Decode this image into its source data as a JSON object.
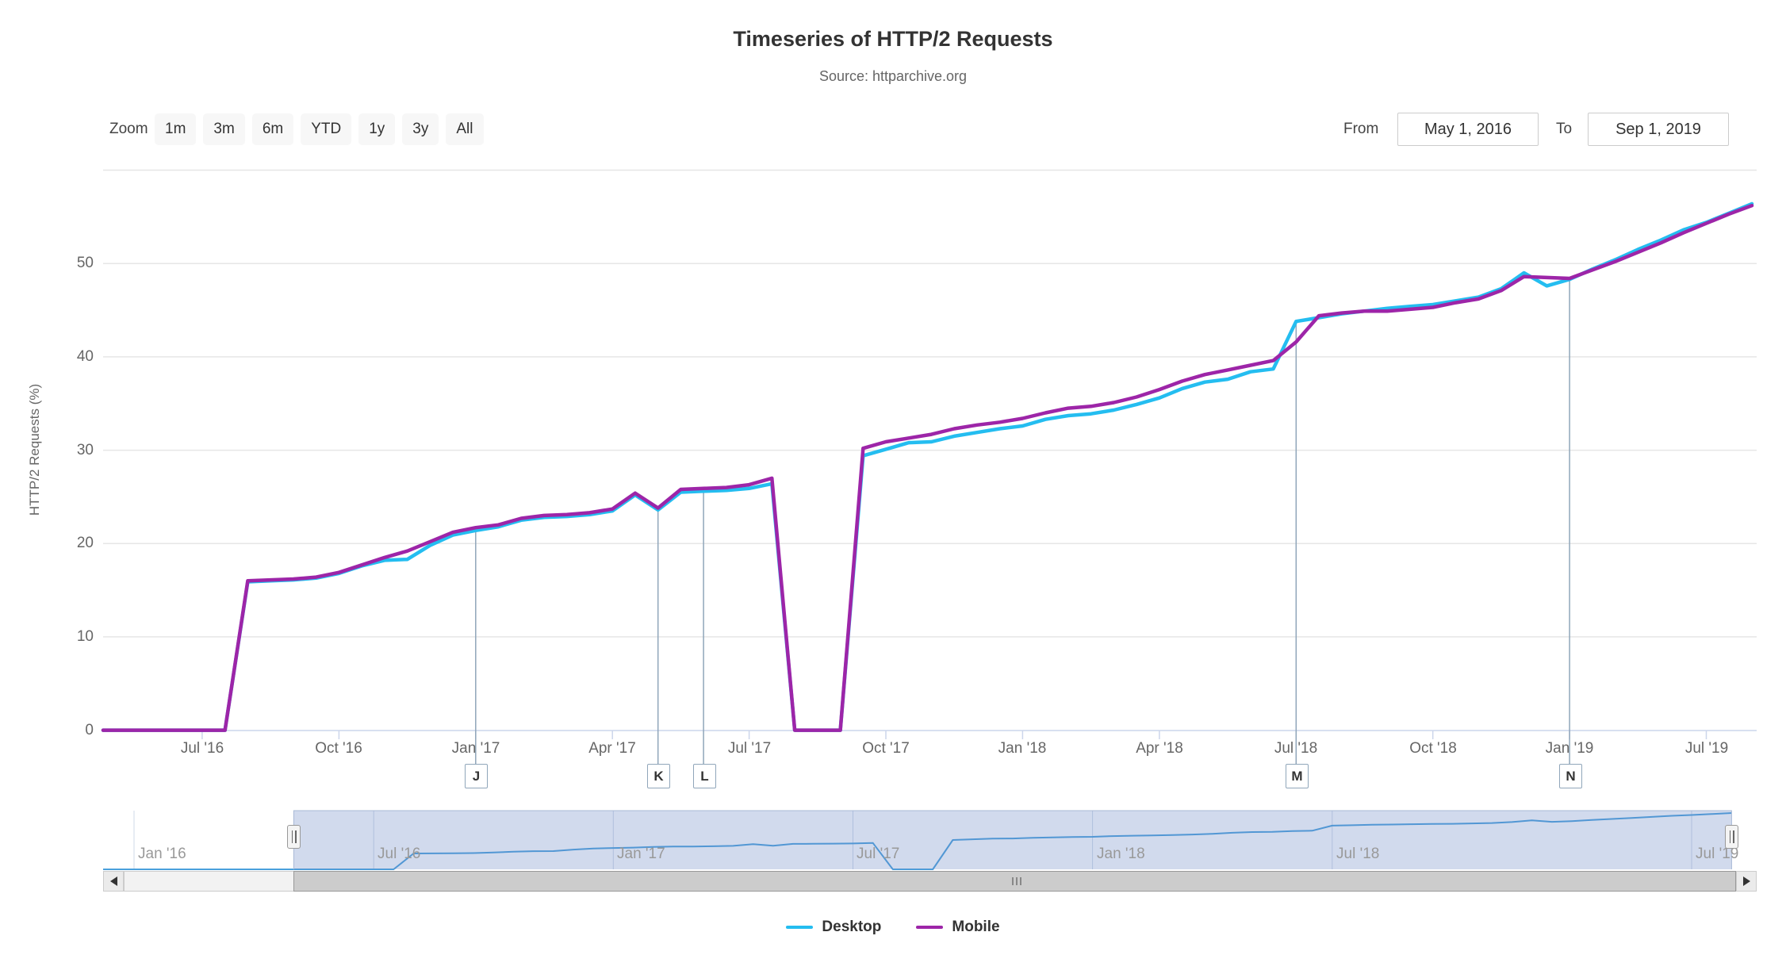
{
  "header": {
    "title": "Timeseries of HTTP/2 Requests",
    "subtitle": "Source: httparchive.org"
  },
  "menu": {
    "icon": "hamburger-icon"
  },
  "range_selector": {
    "zoom_label": "Zoom",
    "buttons": [
      "1m",
      "3m",
      "6m",
      "YTD",
      "1y",
      "3y",
      "All"
    ],
    "from_label": "From",
    "from_value": "May 1, 2016",
    "to_label": "To",
    "to_value": "Sep 1, 2019"
  },
  "y_axis": {
    "title": "HTTP/2 Requests (%)",
    "ticks": [
      0,
      10,
      20,
      30,
      40,
      50
    ]
  },
  "x_axis": {
    "ticks": [
      {
        "label": "Jul '16",
        "i": 4
      },
      {
        "label": "Oct '16",
        "i": 10
      },
      {
        "label": "Jan '17",
        "i": 16
      },
      {
        "label": "Apr '17",
        "i": 22
      },
      {
        "label": "Jul '17",
        "i": 28
      },
      {
        "label": "Oct '17",
        "i": 34
      },
      {
        "label": "Jan '18",
        "i": 40
      },
      {
        "label": "Apr '18",
        "i": 46
      },
      {
        "label": "Jul '18",
        "i": 52
      },
      {
        "label": "Oct '18",
        "i": 58
      },
      {
        "label": "Jan '19",
        "i": 64
      },
      {
        "label": "Jul '19",
        "i": 70
      }
    ]
  },
  "flags": [
    {
      "label": "J",
      "date": "2017-01-01",
      "i": 16
    },
    {
      "label": "K",
      "date": "2017-05-01",
      "i": 24
    },
    {
      "label": "L",
      "date": "2017-06-01",
      "i": 26
    },
    {
      "label": "M",
      "date": "2018-07-01",
      "i": 52
    },
    {
      "label": "N",
      "date": "2019-01-01",
      "i": 64
    }
  ],
  "legend": {
    "items": [
      {
        "label": "Desktop",
        "color": "#24bdf0"
      },
      {
        "label": "Mobile",
        "color": "#9d25a8"
      }
    ]
  },
  "navigator": {
    "labels": [
      {
        "label": "Jan '16",
        "k": 0
      },
      {
        "label": "Jul '16",
        "k": 12
      },
      {
        "label": "Jan '17",
        "k": 24
      },
      {
        "label": "Jul '17",
        "k": 36
      },
      {
        "label": "Jan '18",
        "k": 48
      },
      {
        "label": "Jul '18",
        "k": 60
      },
      {
        "label": "Jul '19",
        "k": 78
      }
    ],
    "selected_start_k": 8,
    "selected_end_k": 80
  },
  "colors": {
    "desktop": "#24bdf0",
    "mobile": "#9d25a8",
    "navigator_line": "#4aa0dc",
    "mask": "rgba(102,133,194,0.3)",
    "grid": "#e6e6e6",
    "axis": "#ccd6eb",
    "label": "#666666",
    "nav_grid": "#cfd9e8"
  },
  "chart_data": {
    "type": "line",
    "title": "Timeseries of HTTP/2 Requests",
    "subtitle": "Source: httparchive.org",
    "xlabel": "",
    "ylabel": "HTTP/2 Requests (%)",
    "ylim": [
      0,
      60
    ],
    "grid": "horizontal",
    "legend_position": "bottom",
    "x": [
      "2016-05-01",
      "2016-05-15",
      "2016-06-01",
      "2016-06-15",
      "2016-07-01",
      "2016-07-15",
      "2016-08-01",
      "2016-08-15",
      "2016-09-01",
      "2016-09-15",
      "2016-10-01",
      "2016-10-15",
      "2016-11-01",
      "2016-11-15",
      "2016-12-01",
      "2016-12-15",
      "2017-01-01",
      "2017-01-15",
      "2017-02-01",
      "2017-02-15",
      "2017-03-01",
      "2017-03-15",
      "2017-04-01",
      "2017-04-15",
      "2017-05-01",
      "2017-05-15",
      "2017-06-01",
      "2017-06-15",
      "2017-07-01",
      "2017-07-15",
      "2017-08-01",
      "2017-08-15",
      "2017-09-01",
      "2017-09-15",
      "2017-10-01",
      "2017-10-15",
      "2017-11-01",
      "2017-11-15",
      "2017-12-01",
      "2017-12-15",
      "2018-01-01",
      "2018-01-15",
      "2018-02-01",
      "2018-02-15",
      "2018-03-01",
      "2018-03-15",
      "2018-04-01",
      "2018-04-15",
      "2018-05-01",
      "2018-05-15",
      "2018-06-01",
      "2018-06-15",
      "2018-07-01",
      "2018-07-15",
      "2018-08-01",
      "2018-08-15",
      "2018-09-01",
      "2018-09-15",
      "2018-10-01",
      "2018-10-15",
      "2018-11-01",
      "2018-11-15",
      "2018-12-01",
      "2018-12-15",
      "2019-01-01",
      "2019-02-01",
      "2019-03-01",
      "2019-04-01",
      "2019-05-01",
      "2019-06-01",
      "2019-07-01",
      "2019-08-01",
      "2019-09-01"
    ],
    "series": [
      {
        "name": "Desktop",
        "color": "#24bdf0",
        "values": [
          0,
          0,
          0,
          0,
          0,
          0,
          15.9,
          16.0,
          16.1,
          16.3,
          16.8,
          17.6,
          18.2,
          18.3,
          19.8,
          20.9,
          21.4,
          21.8,
          22.5,
          22.8,
          22.9,
          23.1,
          23.5,
          25.2,
          23.6,
          25.5,
          25.6,
          25.7,
          25.9,
          26.4,
          0,
          0,
          0,
          29.4,
          30.1,
          30.8,
          30.9,
          31.5,
          31.9,
          32.3,
          32.6,
          33.3,
          33.7,
          33.9,
          34.3,
          34.9,
          35.6,
          36.6,
          37.3,
          37.6,
          38.4,
          38.7,
          43.8,
          44.2,
          44.6,
          44.9,
          45.2,
          45.4,
          45.6,
          46.0,
          46.4,
          47.3,
          49.0,
          47.6,
          48.3,
          49.4,
          50.4,
          51.5,
          52.5,
          53.6,
          54.4,
          55.4,
          56.4
        ]
      },
      {
        "name": "Mobile",
        "color": "#9d25a8",
        "values": [
          0,
          0,
          0,
          0,
          0,
          0,
          16.0,
          16.1,
          16.2,
          16.4,
          16.9,
          17.7,
          18.5,
          19.2,
          20.2,
          21.2,
          21.7,
          22.0,
          22.7,
          23.0,
          23.1,
          23.3,
          23.7,
          25.4,
          23.8,
          25.8,
          25.9,
          26.0,
          26.3,
          27.0,
          0,
          0,
          0,
          30.2,
          30.9,
          31.3,
          31.7,
          32.3,
          32.7,
          33.0,
          33.4,
          34.0,
          34.5,
          34.7,
          35.1,
          35.7,
          36.5,
          37.4,
          38.1,
          38.6,
          39.1,
          39.6,
          41.6,
          44.4,
          44.7,
          44.9,
          44.9,
          45.1,
          45.3,
          45.8,
          46.2,
          47.1,
          48.6,
          48.5,
          48.4,
          49.3,
          50.2,
          51.2,
          52.2,
          53.3,
          54.3,
          55.3,
          56.2
        ]
      }
    ],
    "annotations": [
      {
        "label": "J",
        "date": "2017-01-01"
      },
      {
        "label": "K",
        "date": "2017-05-01"
      },
      {
        "label": "L",
        "date": "2017-06-01"
      },
      {
        "label": "M",
        "date": "2018-07-01"
      },
      {
        "label": "N",
        "date": "2019-01-01"
      }
    ],
    "navigator_series": "Desktop",
    "navigator_range_shown": [
      "2016-01-01",
      "2019-09-01"
    ]
  }
}
